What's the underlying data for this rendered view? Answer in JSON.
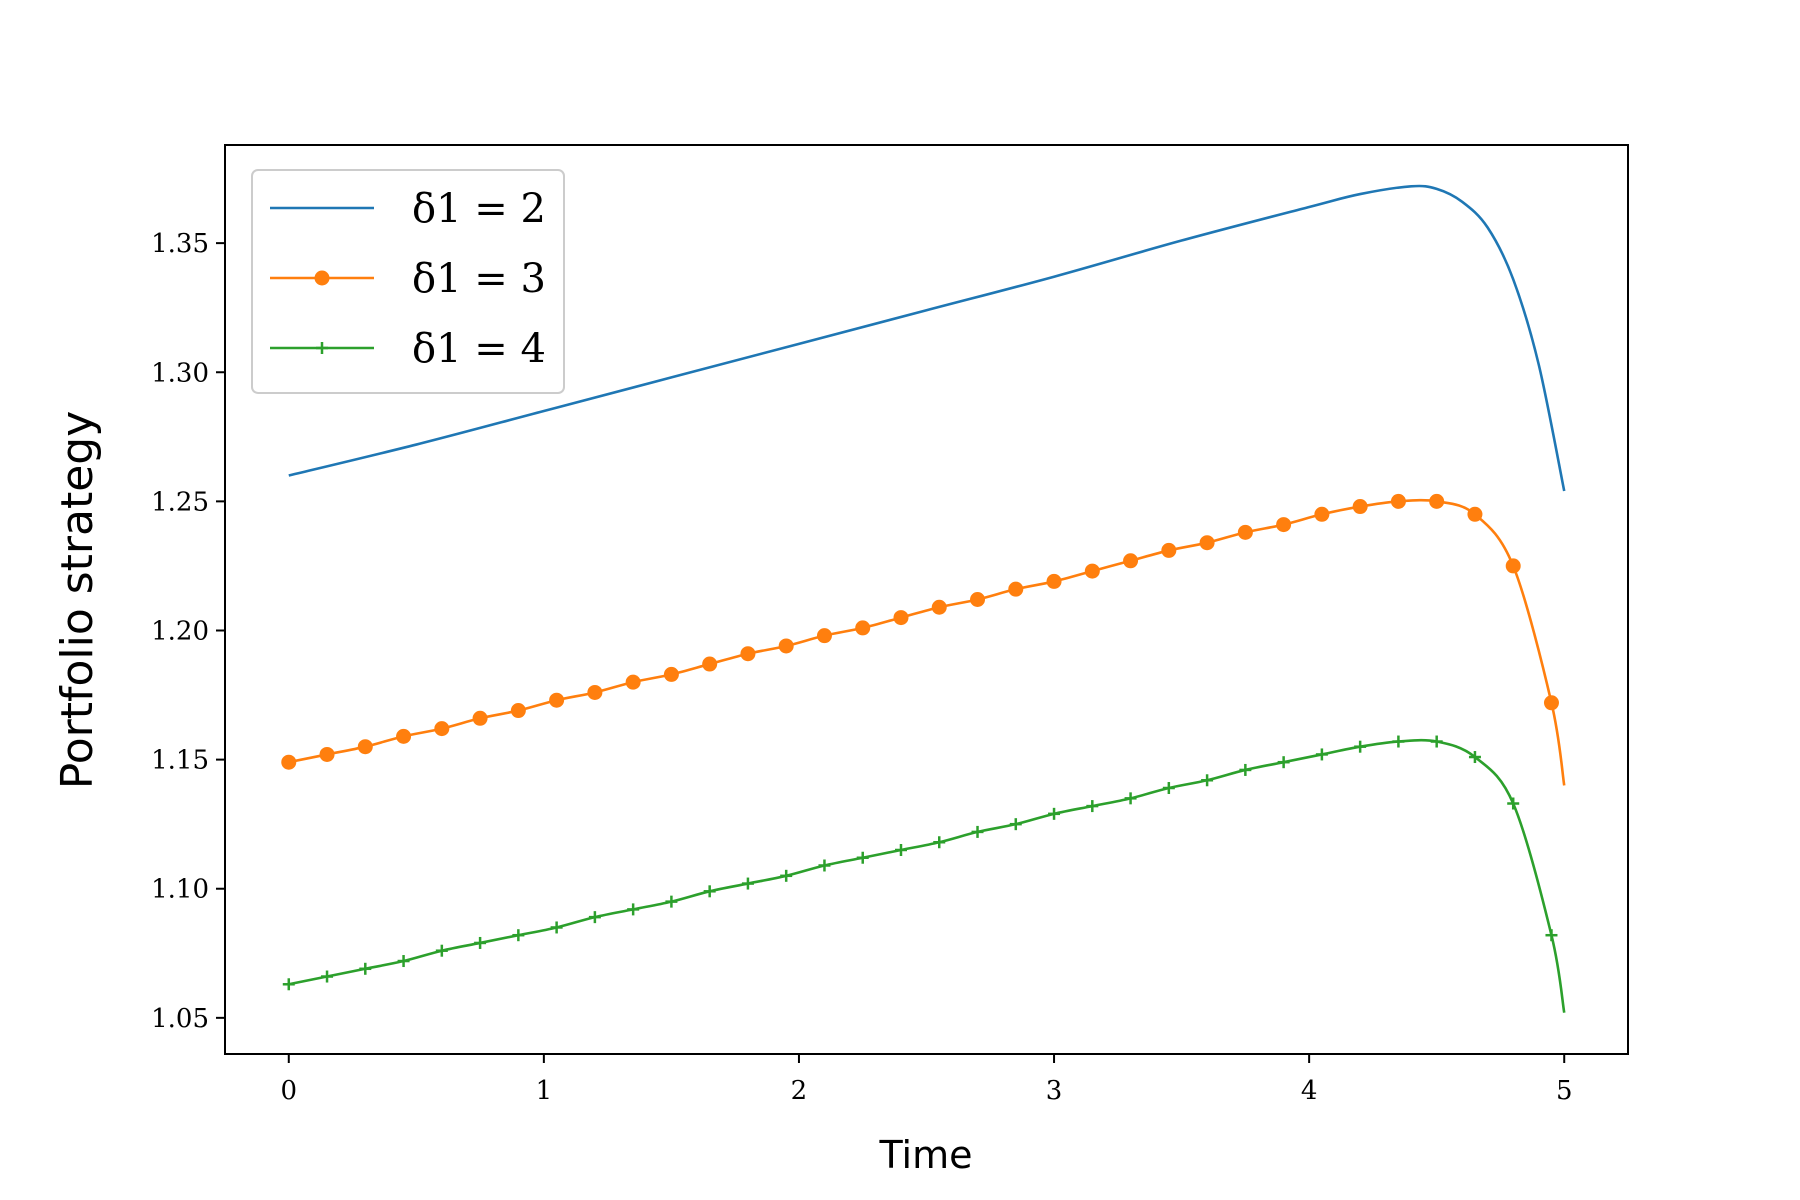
{
  "chart_data": {
    "type": "line",
    "xlabel": "Time",
    "ylabel": "Portfolio strategy",
    "xlim": [
      -0.25,
      5.25
    ],
    "ylim": [
      1.036,
      1.388
    ],
    "xticks": [
      "0",
      "1",
      "2",
      "3",
      "4",
      "5"
    ],
    "yticks": [
      "1.05",
      "1.10",
      "1.15",
      "1.20",
      "1.25",
      "1.30",
      "1.35"
    ],
    "legend_position": "upper-left",
    "series": [
      {
        "name": "δ1 = 2",
        "color": "#1f77b4",
        "marker": "none",
        "x": [
          0,
          0.5,
          1,
          1.5,
          2,
          2.5,
          3,
          3.5,
          4,
          4.2,
          4.4,
          4.5,
          4.6,
          4.7,
          4.8,
          4.9,
          5.0
        ],
        "y": [
          1.26,
          1.272,
          1.285,
          1.298,
          1.311,
          1.324,
          1.337,
          1.351,
          1.364,
          1.369,
          1.372,
          1.371,
          1.366,
          1.356,
          1.336,
          1.303,
          1.254
        ]
      },
      {
        "name": "δ1 = 3",
        "color": "#ff7f0e",
        "marker": "circle",
        "x": [
          0,
          0.15,
          0.3,
          0.45,
          0.6,
          0.75,
          0.9,
          1.05,
          1.2,
          1.35,
          1.5,
          1.65,
          1.8,
          1.95,
          2.1,
          2.25,
          2.4,
          2.55,
          2.7,
          2.85,
          3.0,
          3.15,
          3.3,
          3.45,
          3.6,
          3.75,
          3.9,
          4.05,
          4.2,
          4.35,
          4.5,
          4.65,
          4.8,
          4.95,
          5.0
        ],
        "y": [
          1.149,
          1.152,
          1.155,
          1.159,
          1.162,
          1.166,
          1.169,
          1.173,
          1.176,
          1.18,
          1.183,
          1.187,
          1.191,
          1.194,
          1.198,
          1.201,
          1.205,
          1.209,
          1.212,
          1.216,
          1.219,
          1.223,
          1.227,
          1.231,
          1.234,
          1.238,
          1.241,
          1.245,
          1.248,
          1.25,
          1.25,
          1.245,
          1.225,
          1.172,
          1.14
        ],
        "marker_x": [
          0,
          0.15,
          0.3,
          0.45,
          0.6,
          0.75,
          0.9,
          1.05,
          1.2,
          1.35,
          1.5,
          1.65,
          1.8,
          1.95,
          2.1,
          2.25,
          2.4,
          2.55,
          2.7,
          2.85,
          3.0,
          3.15,
          3.3,
          3.45,
          3.6,
          3.75,
          3.9,
          4.05,
          4.2,
          4.35,
          4.5,
          4.65,
          4.8,
          4.95
        ]
      },
      {
        "name": "δ1 = 4",
        "color": "#2ca02c",
        "marker": "plus",
        "x": [
          0,
          0.15,
          0.3,
          0.45,
          0.6,
          0.75,
          0.9,
          1.05,
          1.2,
          1.35,
          1.5,
          1.65,
          1.8,
          1.95,
          2.1,
          2.25,
          2.4,
          2.55,
          2.7,
          2.85,
          3.0,
          3.15,
          3.3,
          3.45,
          3.6,
          3.75,
          3.9,
          4.05,
          4.2,
          4.35,
          4.5,
          4.65,
          4.8,
          4.95,
          5.0
        ],
        "y": [
          1.063,
          1.066,
          1.069,
          1.072,
          1.076,
          1.079,
          1.082,
          1.085,
          1.089,
          1.092,
          1.095,
          1.099,
          1.102,
          1.105,
          1.109,
          1.112,
          1.115,
          1.118,
          1.122,
          1.125,
          1.129,
          1.132,
          1.135,
          1.139,
          1.142,
          1.146,
          1.149,
          1.152,
          1.155,
          1.157,
          1.157,
          1.151,
          1.133,
          1.082,
          1.052
        ],
        "marker_x": [
          0,
          0.15,
          0.3,
          0.45,
          0.6,
          0.75,
          0.9,
          1.05,
          1.2,
          1.35,
          1.5,
          1.65,
          1.8,
          1.95,
          2.1,
          2.25,
          2.4,
          2.55,
          2.7,
          2.85,
          3.0,
          3.15,
          3.3,
          3.45,
          3.6,
          3.75,
          3.9,
          4.05,
          4.2,
          4.35,
          4.5,
          4.65,
          4.8,
          4.95
        ]
      }
    ]
  }
}
